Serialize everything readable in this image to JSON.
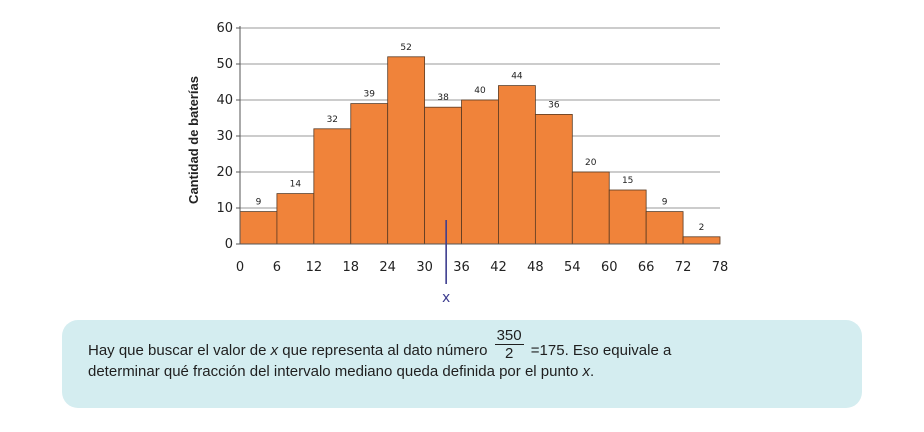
{
  "chart_data": {
    "type": "bar",
    "bin_edges": [
      0,
      6,
      12,
      18,
      24,
      30,
      36,
      42,
      48,
      54,
      60,
      66,
      72,
      78
    ],
    "values": [
      9,
      14,
      32,
      39,
      52,
      38,
      40,
      44,
      36,
      20,
      15,
      9,
      2
    ],
    "x_tick_labels": [
      "0",
      "6",
      "12",
      "18",
      "24",
      "30",
      "36",
      "42",
      "48",
      "54",
      "60",
      "66",
      "72",
      "78"
    ],
    "y_ticks": [
      0,
      10,
      20,
      30,
      40,
      50,
      60
    ],
    "ylabel": "Cantidad de baterías",
    "xlabel": "",
    "ylim": [
      0,
      60
    ],
    "xlim": [
      0,
      78
    ],
    "grid": "horizontal",
    "bar_color": "#f0833a",
    "marker": {
      "label": "x",
      "value": 33.5,
      "color": "#3d3d8f"
    }
  },
  "note": {
    "line1_before": "Hay que buscar el valor de ",
    "line1_var": "x",
    "line1_middle": " que representa al dato número ",
    "frac_num": "350",
    "frac_den": "2",
    "line1_after": " =175. Eso equivale a",
    "line2_before": "determinar qué fracción del intervalo mediano queda definida por el punto ",
    "line2_var": "x",
    "line2_after": "."
  }
}
